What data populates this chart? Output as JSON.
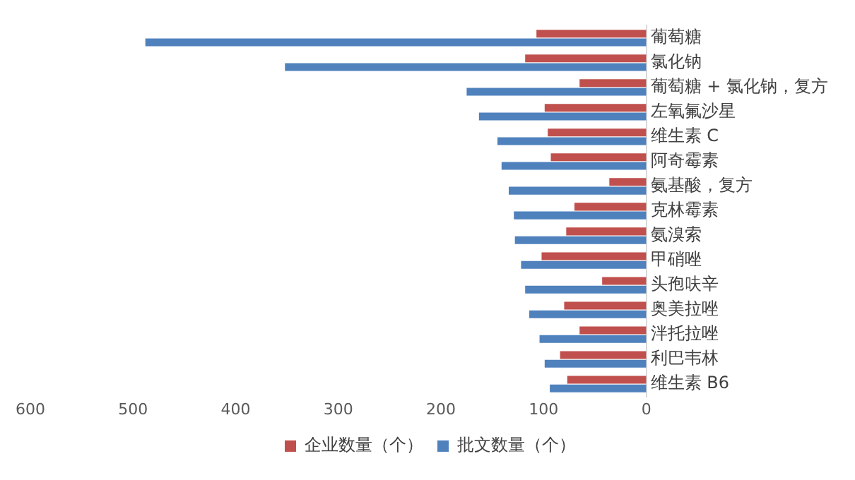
{
  "chart_data": {
    "type": "bar",
    "orientation": "horizontal",
    "categories": [
      "葡萄糖",
      "氯化钠",
      "葡萄糖 + 氯化钠，复方",
      "左氧氟沙星",
      "维生素 C",
      "阿奇霉素",
      "氨基酸，复方",
      "克林霉素",
      "氨溴索",
      "甲硝唑",
      "头孢呋辛",
      "奥美拉唑",
      "泮托拉唑",
      "利巴韦林",
      "维生素 B6"
    ],
    "series": [
      {
        "name": "企业数量（个）",
        "color": "#c0504d",
        "values": [
          107,
          118,
          65,
          99,
          96,
          93,
          36,
          70,
          78,
          102,
          43,
          80,
          65,
          84,
          77
        ]
      },
      {
        "name": "批文数量（个）",
        "color": "#4f81bd",
        "values": [
          488,
          352,
          175,
          163,
          145,
          141,
          134,
          129,
          128,
          122,
          118,
          114,
          104,
          99,
          94
        ]
      }
    ],
    "xlim": [
      600,
      0
    ],
    "xticks": [
      600,
      500,
      400,
      300,
      200,
      100,
      0
    ],
    "grid": false,
    "legend": "bottom"
  }
}
